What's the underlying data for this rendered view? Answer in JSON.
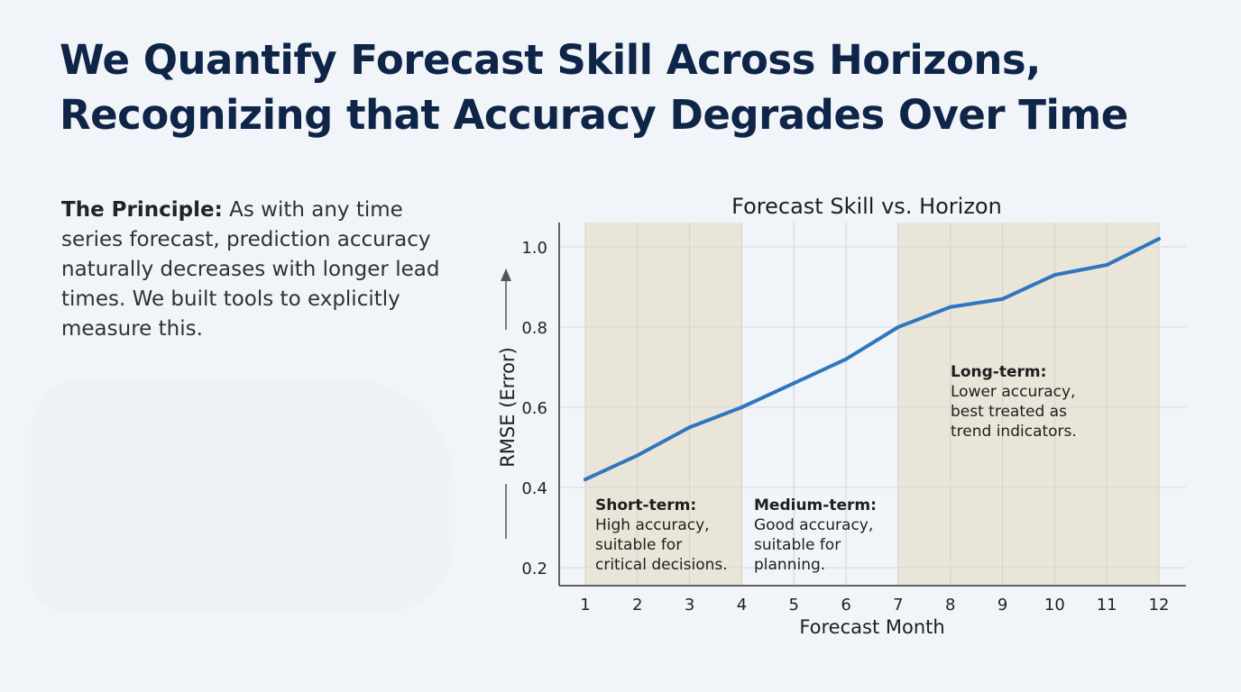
{
  "headline": {
    "line1": "We Quantify Forecast Skill Across Horizons,",
    "line2": "Recognizing that Accuracy Degrades Over Time"
  },
  "principle": {
    "label": "The Principle:",
    "text": " As with any time series forecast, prediction accuracy naturally decreases with longer lead times. We built tools to explicitly measure this."
  },
  "colors": {
    "line": "#2f76bf",
    "band": "#e9e5d8",
    "headline": "#0f2548"
  },
  "chart_data": {
    "type": "line",
    "title": "Forecast Skill vs. Horizon",
    "xlabel": "Forecast Month",
    "ylabel": "RMSE (Error)",
    "x": [
      1,
      2,
      3,
      4,
      5,
      6,
      7,
      8,
      9,
      10,
      11,
      12
    ],
    "ylim": [
      0.2,
      1.05
    ],
    "yticks": [
      "0.2",
      "0.4",
      "0.6",
      "0.8",
      "1.0"
    ],
    "grid": true,
    "series": [
      {
        "values": [
          0.42,
          0.48,
          0.55,
          0.6,
          0.66,
          0.72,
          0.8,
          0.85,
          0.87,
          0.93,
          0.955,
          1.02
        ]
      }
    ],
    "regions": [
      {
        "from": 1,
        "to": 4,
        "title": "Short-term:",
        "lines": [
          "High accuracy,",
          "suitable for",
          "critical decisions."
        ],
        "shaded": true
      },
      {
        "from": 4,
        "to": 7,
        "title": "Medium-term:",
        "lines": [
          "Good accuracy,",
          "suitable for",
          "planning."
        ],
        "shaded": false
      },
      {
        "from": 7,
        "to": 12,
        "title": "Long-term:",
        "lines": [
          "Lower accuracy,",
          "best treated as",
          "trend indicators."
        ],
        "shaded": true
      }
    ]
  }
}
